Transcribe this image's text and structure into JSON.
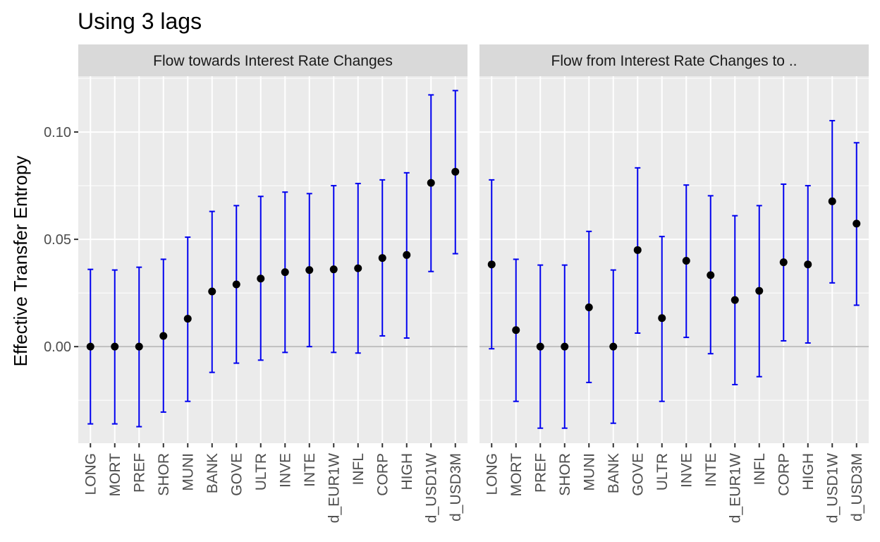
{
  "chart_data": {
    "type": "errorbar",
    "title": "Using 3 lags",
    "ylabel": "Effective Transfer Entropy",
    "xlabel": "",
    "ylim": [
      -0.045,
      0.126
    ],
    "yticks": [
      0.0,
      0.05,
      0.1
    ],
    "ytick_labels": [
      "0.00",
      "0.05",
      "0.10"
    ],
    "categories": [
      "LONG",
      "MORT",
      "PREF",
      "SHOR",
      "MUNI",
      "BANK",
      "GOVE",
      "ULTR",
      "INVE",
      "INTE",
      "d_EUR1W",
      "INFL",
      "CORP",
      "HIGH",
      "d_USD1W",
      "d_USD3M"
    ],
    "colors": {
      "errorbar": "#0000ee",
      "point": "#000000",
      "panel_bg": "#ebebeb",
      "grid": "#ffffff",
      "strip_bg": "#d9d9d9",
      "zero_line": "#bebebe"
    },
    "panels": [
      {
        "strip": "Flow towards Interest Rate Changes",
        "values": [
          0.0,
          0.0,
          0.0,
          0.005,
          0.013,
          0.0257,
          0.029,
          0.0317,
          0.0347,
          0.0357,
          0.036,
          0.0365,
          0.0413,
          0.0427,
          0.0763,
          0.0815
        ],
        "lower": [
          -0.036,
          -0.036,
          -0.0373,
          -0.0305,
          -0.0255,
          -0.012,
          -0.0077,
          -0.0063,
          -0.0027,
          0.0,
          -0.0027,
          -0.003,
          0.005,
          0.004,
          0.035,
          0.0433
        ],
        "upper": [
          0.036,
          0.0357,
          0.037,
          0.0407,
          0.051,
          0.063,
          0.0657,
          0.07,
          0.072,
          0.0713,
          0.075,
          0.076,
          0.0777,
          0.081,
          0.1173,
          0.1193
        ]
      },
      {
        "strip": "Flow from Interest Rate Changes to ..",
        "values": [
          0.0383,
          0.0077,
          0.0,
          0.0,
          0.0183,
          0.0,
          0.045,
          0.0133,
          0.04,
          0.0333,
          0.0217,
          0.026,
          0.0393,
          0.0383,
          0.0677,
          0.0573
        ],
        "lower": [
          -0.001,
          -0.0255,
          -0.038,
          -0.038,
          -0.0167,
          -0.0357,
          0.0063,
          -0.0255,
          0.0043,
          -0.0033,
          -0.0177,
          -0.014,
          0.0027,
          0.0017,
          0.0297,
          0.0193
        ],
        "upper": [
          0.0777,
          0.0407,
          0.038,
          0.038,
          0.0537,
          0.0357,
          0.0833,
          0.0513,
          0.0753,
          0.0703,
          0.061,
          0.0657,
          0.0757,
          0.075,
          0.1053,
          0.095
        ]
      }
    ]
  }
}
